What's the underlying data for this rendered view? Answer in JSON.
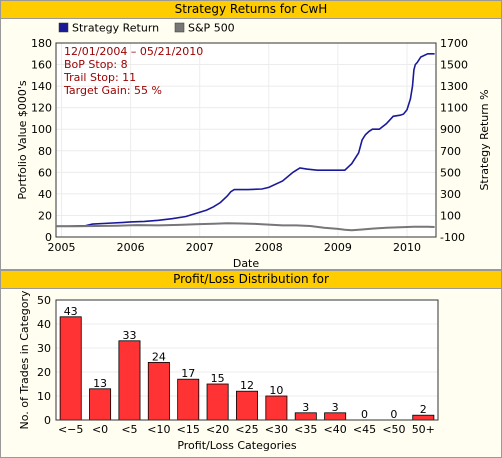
{
  "chart_data": [
    {
      "type": "line",
      "title": "Strategy Returns for CwH",
      "legend": {
        "placement": "top-left",
        "entries": [
          {
            "name": "Strategy Return",
            "color": "#1a1a99"
          },
          {
            "name": "S&P 500",
            "color": "#777777"
          }
        ]
      },
      "annotations": [
        "12/01/2004 – 05/21/2010",
        "BoP Stop: 8",
        "Trail Stop: 11",
        "Target Gain: 55 %"
      ],
      "xlabel": "Date",
      "ylabel": "Portfolio Value $000's",
      "ylabel2": "Strategy Return %",
      "xlim": [
        2004.92,
        2010.42
      ],
      "ylim": [
        0,
        180
      ],
      "y2lim": [
        -100,
        1700
      ],
      "x_ticks": [
        "2005",
        "2006",
        "2007",
        "2008",
        "2009",
        "2010"
      ],
      "y_ticks": [
        "0",
        "20",
        "40",
        "60",
        "80",
        "100",
        "120",
        "140",
        "160",
        "180"
      ],
      "y2_ticks": [
        "-100",
        "100",
        "300",
        "500",
        "700",
        "900",
        "1100",
        "1300",
        "1500",
        "1700"
      ],
      "grid": true,
      "series": [
        {
          "name": "Strategy Return",
          "color": "#1a1a99",
          "points": [
            [
              2004.92,
              10
            ],
            [
              2005.1,
              10
            ],
            [
              2005.35,
              10.5
            ],
            [
              2005.45,
              12
            ],
            [
              2005.6,
              12.5
            ],
            [
              2005.9,
              13.5
            ],
            [
              2006.0,
              14
            ],
            [
              2006.2,
              14.5
            ],
            [
              2006.4,
              15.5
            ],
            [
              2006.6,
              17
            ],
            [
              2006.8,
              19
            ],
            [
              2006.9,
              21
            ],
            [
              2007.0,
              23
            ],
            [
              2007.1,
              25
            ],
            [
              2007.2,
              28
            ],
            [
              2007.3,
              32
            ],
            [
              2007.4,
              38
            ],
            [
              2007.45,
              42
            ],
            [
              2007.5,
              44
            ],
            [
              2007.7,
              44
            ],
            [
              2007.9,
              44.5
            ],
            [
              2008.0,
              46
            ],
            [
              2008.2,
              52
            ],
            [
              2008.35,
              60
            ],
            [
              2008.45,
              64
            ],
            [
              2008.55,
              63
            ],
            [
              2008.7,
              62
            ],
            [
              2008.9,
              62
            ],
            [
              2009.1,
              62
            ],
            [
              2009.2,
              68
            ],
            [
              2009.3,
              78
            ],
            [
              2009.35,
              90
            ],
            [
              2009.4,
              95
            ],
            [
              2009.45,
              98
            ],
            [
              2009.5,
              100
            ],
            [
              2009.6,
              100
            ],
            [
              2009.7,
              105
            ],
            [
              2009.8,
              112
            ],
            [
              2009.9,
              113
            ],
            [
              2009.95,
              114
            ],
            [
              2010.0,
              118
            ],
            [
              2010.05,
              128
            ],
            [
              2010.08,
              140
            ],
            [
              2010.1,
              155
            ],
            [
              2010.12,
              160
            ],
            [
              2010.15,
              162
            ],
            [
              2010.2,
              167
            ],
            [
              2010.3,
              170
            ],
            [
              2010.4,
              170
            ]
          ]
        },
        {
          "name": "S&P 500",
          "color": "#777777",
          "points": [
            [
              2004.92,
              10
            ],
            [
              2005.2,
              10
            ],
            [
              2005.5,
              10.2
            ],
            [
              2005.8,
              10.5
            ],
            [
              2006.1,
              11
            ],
            [
              2006.4,
              10.8
            ],
            [
              2006.7,
              11.2
            ],
            [
              2007.0,
              12
            ],
            [
              2007.2,
              12.3
            ],
            [
              2007.4,
              12.8
            ],
            [
              2007.6,
              12.5
            ],
            [
              2007.8,
              12.2
            ],
            [
              2008.0,
              11.5
            ],
            [
              2008.2,
              10.8
            ],
            [
              2008.4,
              10.8
            ],
            [
              2008.6,
              10.2
            ],
            [
              2008.8,
              8.5
            ],
            [
              2009.0,
              7.5
            ],
            [
              2009.1,
              6.8
            ],
            [
              2009.2,
              6.2
            ],
            [
              2009.35,
              7
            ],
            [
              2009.5,
              7.8
            ],
            [
              2009.7,
              8.5
            ],
            [
              2009.9,
              9
            ],
            [
              2010.1,
              9.5
            ],
            [
              2010.3,
              9.6
            ],
            [
              2010.4,
              9.3
            ]
          ]
        }
      ]
    },
    {
      "type": "bar",
      "title": "Profit/Loss Distribution for",
      "xlabel": "Profit/Loss Categories",
      "ylabel": "No. of Trades in Category",
      "ylim": [
        0,
        50
      ],
      "y_ticks": [
        "0",
        "10",
        "20",
        "30",
        "40",
        "50"
      ],
      "grid": true,
      "bar_color": "#ff3333",
      "categories": [
        "<−5",
        "<0",
        "<5",
        "<10",
        "<15",
        "<20",
        "<25",
        "<30",
        "<35",
        "<40",
        "<45",
        "<50",
        "50+"
      ],
      "values": [
        43,
        13,
        33,
        24,
        17,
        15,
        12,
        10,
        3,
        3,
        0,
        0,
        2
      ]
    }
  ]
}
